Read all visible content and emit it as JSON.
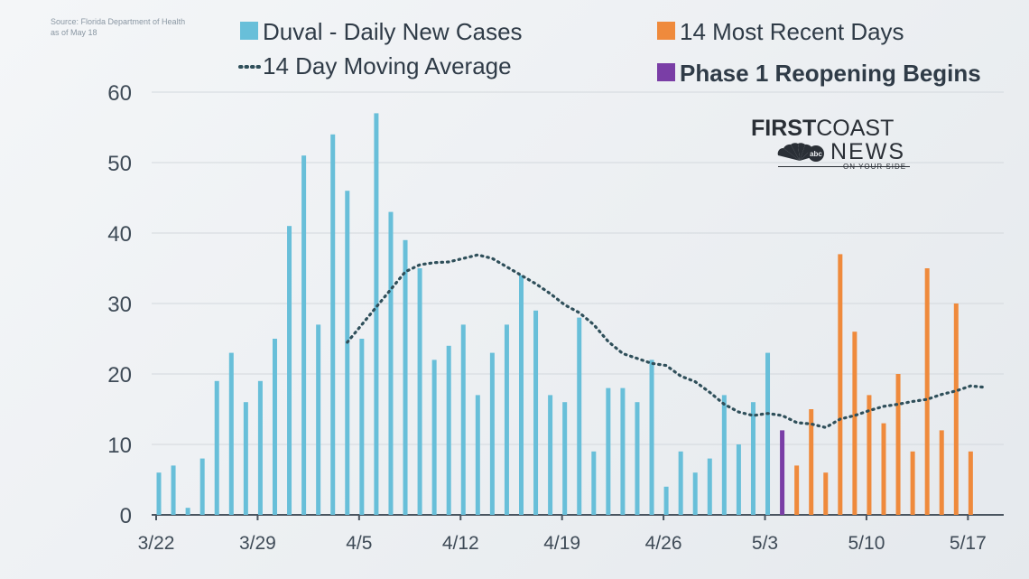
{
  "source_note": [
    "Source: Florida Department of Health",
    "as of May 18"
  ],
  "logo": {
    "brand_bold": "FIRST",
    "brand_light": "COAST",
    "news": "NEWS",
    "tagline": "ON YOUR SIDE",
    "icon": "nbc-peacock-icon"
  },
  "colors": {
    "daily": "#68bfd9",
    "recent": "#ef8a3c",
    "phase1": "#7a3ea6",
    "moving_avg": "#2f4f5a",
    "grid": "#d3d8dd",
    "text": "#2f3b47",
    "axis": "#4a5560"
  },
  "chart_data": {
    "type": "bar",
    "title": "",
    "xlabel": "",
    "ylabel": "",
    "ylim": [
      0,
      60
    ],
    "yticks": [
      "0",
      "10",
      "20",
      "30",
      "40",
      "50",
      "60"
    ],
    "x_tick_labels": [
      "3/22",
      "3/29",
      "4/5",
      "4/12",
      "4/19",
      "4/26",
      "5/3",
      "5/10",
      "5/17"
    ],
    "x_tick_day_index": [
      0,
      7,
      14,
      21,
      28,
      35,
      42,
      49,
      56
    ],
    "grid": true,
    "legend_position": "top",
    "legend": [
      {
        "name": "Duval - Daily New Cases",
        "marker": "square",
        "color_key": "daily"
      },
      {
        "name": "14 Day Moving Average",
        "marker": "dotted-line",
        "color_key": "moving_avg"
      },
      {
        "name": "14 Most Recent Days",
        "marker": "square",
        "color_key": "recent"
      },
      {
        "name": "Phase 1 Reopening Begins",
        "marker": "square",
        "color_key": "phase1"
      }
    ],
    "series": [
      {
        "name": "Duval - Daily New Cases",
        "start_date": "3/22",
        "values": [
          6,
          7,
          1,
          8,
          19,
          23,
          16,
          19,
          25,
          41,
          51,
          27,
          54,
          46,
          25,
          57,
          43,
          39,
          35,
          22,
          24,
          27,
          17,
          23,
          27,
          34,
          29,
          17,
          16,
          28,
          9,
          18,
          18,
          16,
          22,
          4,
          9,
          6,
          8,
          17,
          10,
          16,
          23
        ]
      },
      {
        "name": "Phase 1 Reopening Begins",
        "start_date": "5/4",
        "values": [
          12
        ]
      },
      {
        "name": "14 Most Recent Days",
        "start_date": "5/5",
        "values": [
          7,
          15,
          6,
          37,
          26,
          17,
          13,
          20,
          9,
          35,
          12,
          30,
          9
        ]
      },
      {
        "name": "14 Day Moving Average",
        "start_date": "4/4",
        "values": [
          24.5,
          27,
          29.5,
          32,
          34.5,
          35.5,
          35.8,
          35.9,
          36.4,
          36.9,
          36.4,
          35.2,
          34,
          32.8,
          31.4,
          29.8,
          28.7,
          27,
          24.6,
          22.9,
          22.2,
          21.5,
          21.2,
          19.7,
          18.9,
          17.4,
          15.7,
          14.6,
          14.1,
          14.4,
          14.1,
          13.1,
          12.9,
          12.4,
          13.6,
          14.1,
          14.8,
          15.4,
          15.7,
          16.1,
          16.4,
          17.1,
          17.6,
          18.3,
          18.1
        ]
      }
    ]
  }
}
